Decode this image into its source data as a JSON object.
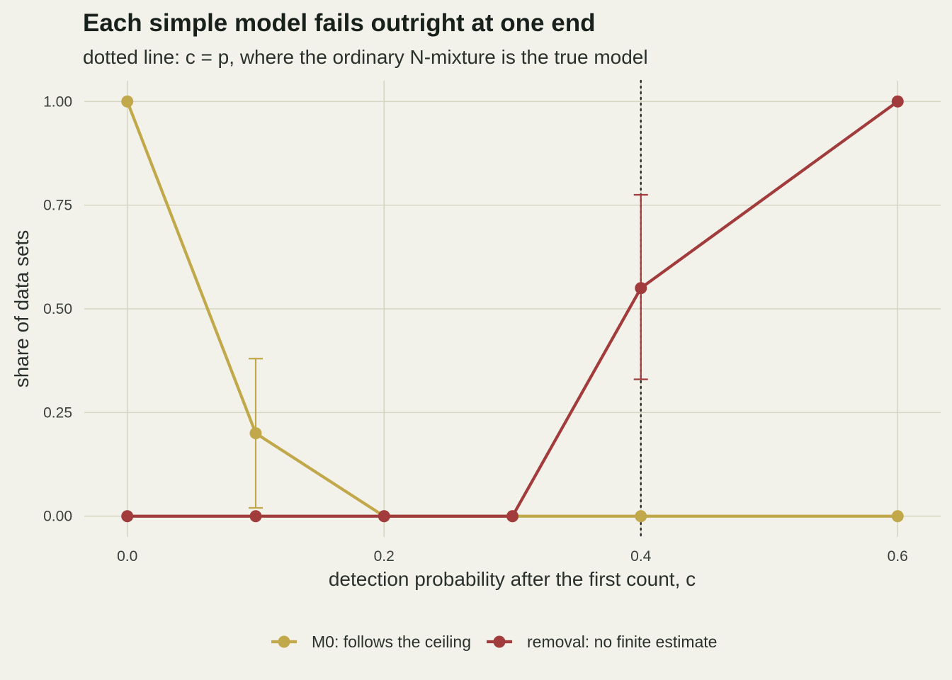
{
  "chart_data": {
    "type": "line",
    "title": "Each simple model fails outright at one end",
    "subtitle": "dotted line: c = p, where the ordinary N-mixture is the true model",
    "xlabel": "detection probability after the first count, c",
    "ylabel": "share of data sets",
    "xlim": [
      -0.0335,
      0.6335
    ],
    "ylim": [
      -0.05,
      1.05
    ],
    "x_ticks": [
      0.0,
      0.2,
      0.4,
      0.6
    ],
    "x_tick_labels": [
      "0.0",
      "0.2",
      "0.4",
      "0.6"
    ],
    "y_ticks": [
      0.0,
      0.25,
      0.5,
      0.75,
      1.0
    ],
    "y_tick_labels": [
      "0.00",
      "0.25",
      "0.50",
      "0.75",
      "1.00"
    ],
    "x_minor_gridlines": [
      0.1,
      0.3,
      0.5
    ],
    "y_minor_gridlines": [
      0.125,
      0.375,
      0.625,
      0.875
    ],
    "reference_line": {
      "x": 0.4,
      "style": "dotted",
      "color": "#2b2b2b"
    },
    "grid": true,
    "legend_position": "bottom",
    "series": [
      {
        "name": "M0: follows the ceiling",
        "color": "#c1a84a",
        "x": [
          0.0,
          0.1,
          0.2,
          0.3,
          0.4,
          0.6
        ],
        "values": [
          1.0,
          0.2,
          0.0,
          0.0,
          0.0,
          0.0
        ],
        "error_bars": [
          {
            "x": 0.1,
            "low": 0.02,
            "high": 0.38
          }
        ]
      },
      {
        "name": "removal: no finite estimate",
        "color": "#a23c3c",
        "x": [
          0.0,
          0.1,
          0.2,
          0.3,
          0.4,
          0.6
        ],
        "values": [
          0.0,
          0.0,
          0.0,
          0.0,
          0.55,
          1.0
        ],
        "error_bars": [
          {
            "x": 0.4,
            "low": 0.33,
            "high": 0.775
          }
        ]
      }
    ]
  }
}
